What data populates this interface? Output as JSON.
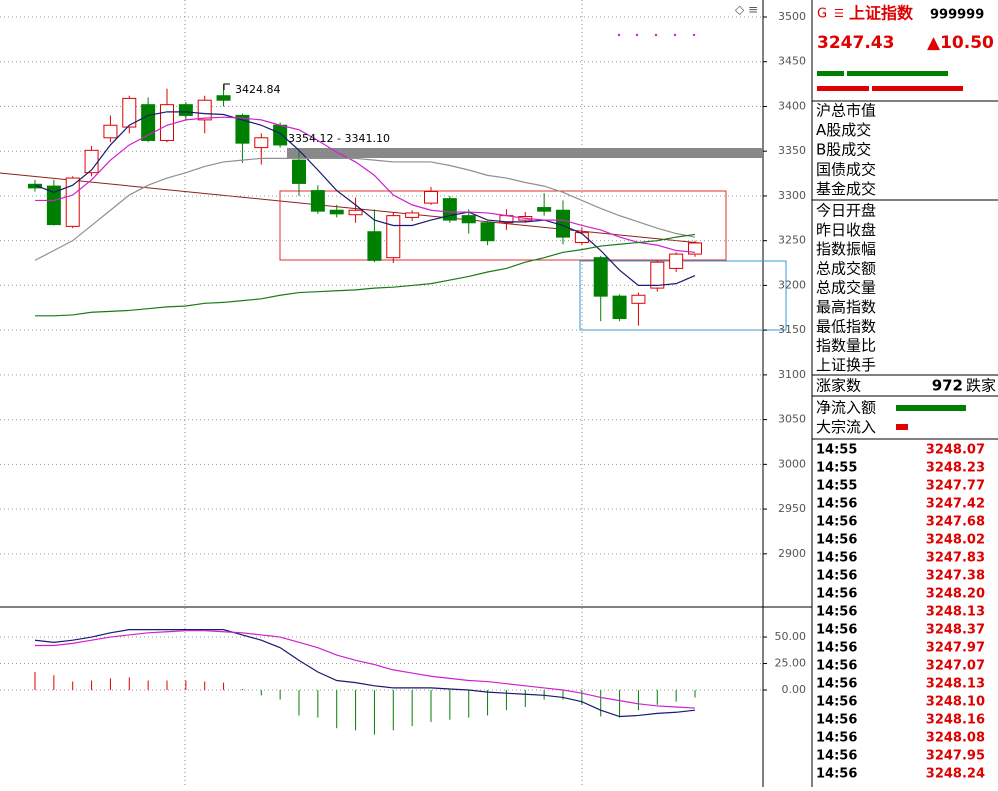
{
  "chart_data": [
    {
      "type": "candlestick",
      "categories": [
        null,
        null,
        null,
        null,
        null,
        null,
        null,
        null,
        null,
        null,
        null,
        null,
        null,
        null,
        null,
        null,
        null,
        null,
        null,
        null,
        null,
        null,
        null,
        null,
        null,
        null,
        null,
        null,
        null,
        null,
        null,
        null,
        null,
        null,
        null,
        null
      ],
      "open": [
        3313,
        3311,
        3266,
        3326,
        3365,
        3377,
        3402,
        3362,
        3402,
        3385,
        3412,
        3390,
        3354,
        3379,
        3340,
        3306,
        3284,
        3279,
        3260,
        3231,
        3276,
        3292,
        3297,
        3278,
        3270,
        3270,
        3273,
        3287,
        3284,
        3248,
        3231,
        3188,
        3180,
        3197,
        3219,
        3235
      ],
      "high": [
        3318,
        3318,
        3322,
        3356,
        3390,
        3412,
        3410,
        3420,
        3405,
        3412,
        3424.84,
        3392,
        3370,
        3382,
        3350,
        3312,
        3290,
        3298,
        3285,
        3282,
        3284,
        3310,
        3300,
        3285,
        3272,
        3285,
        3282,
        3303,
        3295,
        3265,
        3233,
        3190,
        3192,
        3228,
        3237,
        3250
      ],
      "low": [
        3305,
        3267,
        3264,
        3322,
        3360,
        3370,
        3360,
        3360,
        3385,
        3370,
        3400,
        3337,
        3335,
        3354,
        3300,
        3280,
        3276,
        3270,
        3226,
        3225,
        3272,
        3290,
        3270,
        3258,
        3245,
        3262,
        3270,
        3278,
        3246,
        3245,
        3160,
        3160,
        3155,
        3193,
        3215,
        3232
      ],
      "close": [
        3309,
        3268,
        3320,
        3351,
        3379,
        3409,
        3362,
        3402,
        3390,
        3407,
        3407,
        3359,
        3365,
        3357,
        3314,
        3283,
        3280,
        3284,
        3228,
        3278,
        3281,
        3305,
        3273,
        3270,
        3250,
        3278,
        3277,
        3283,
        3254,
        3259,
        3188,
        3163,
        3189,
        3226,
        3235,
        3247.43
      ],
      "up_color": "#e00000",
      "down_color": "#008000",
      "lines": [
        {
          "color": "#1a1a6e",
          "values": [
            3312,
            3304,
            3312,
            3329,
            3357,
            3379,
            3390,
            3394,
            3394,
            3392,
            3391,
            3385,
            3379,
            3370,
            3351,
            3329,
            3306,
            3290,
            3273,
            3267,
            3267,
            3273,
            3278,
            3282,
            3273,
            3271,
            3271,
            3273,
            3267,
            3258,
            3239,
            3217,
            3200,
            3200,
            3202,
            3211
          ]
        },
        {
          "color": "#d020d0",
          "values": [
            3295,
            3295,
            3301,
            3318,
            3340,
            3357,
            3368,
            3379,
            3385,
            3387,
            3388,
            3387,
            3385,
            3379,
            3374,
            3362,
            3349,
            3338,
            3323,
            3301,
            3290,
            3284,
            3282,
            3282,
            3281,
            3278,
            3275,
            3273,
            3273,
            3267,
            3262,
            3254,
            3248,
            3245,
            3239,
            3237
          ]
        },
        {
          "color": "#909090",
          "values": [
            3228,
            3239,
            3250,
            3267,
            3284,
            3301,
            3312,
            3320,
            3326,
            3333,
            3338,
            3340,
            3342,
            3342,
            3342,
            3342,
            3342,
            3342,
            3340,
            3338,
            3338,
            3338,
            3334,
            3329,
            3323,
            3320,
            3315,
            3311,
            3304,
            3295,
            3286,
            3278,
            3271,
            3264,
            3258,
            3254
          ]
        },
        {
          "color": "#1a7a1a",
          "values": [
            3166,
            3166,
            3167,
            3170,
            3171,
            3172,
            3174,
            3176,
            3177,
            3180,
            3181,
            3183,
            3185,
            3189,
            3192,
            3193,
            3194,
            3195,
            3197,
            3198,
            3200,
            3202,
            3206,
            3210,
            3215,
            3219,
            3226,
            3231,
            3237,
            3240,
            3244,
            3246,
            3248,
            3250,
            3254,
            3257
          ]
        }
      ],
      "annotations": [
        "3424.84",
        "3354.12 - 3341.10"
      ],
      "ylim": [
        2842.8,
        3519
      ],
      "yticks": [
        2900,
        2950,
        3000,
        3050,
        3100,
        3150,
        3200,
        3250,
        3300,
        3350,
        3400,
        3450,
        3500
      ],
      "grid": true
    },
    {
      "type": "macd",
      "categories": [
        null,
        null,
        null,
        null,
        null,
        null,
        null,
        null,
        null,
        null,
        null,
        null,
        null,
        null,
        null,
        null,
        null,
        null,
        null,
        null,
        null,
        null,
        null,
        null,
        null,
        null,
        null,
        null,
        null,
        null,
        null,
        null,
        null,
        null,
        null,
        null
      ],
      "histogram": [
        17,
        14,
        8,
        9,
        11,
        12,
        9,
        9,
        9,
        8,
        7,
        1,
        -5,
        -9,
        -24,
        -26,
        -36,
        -38,
        -42,
        -38,
        -34,
        -30,
        -28,
        -26,
        -24,
        -19,
        -16,
        -9,
        -9,
        -14,
        -25,
        -26,
        -19,
        -14,
        -11,
        -7
      ],
      "up_color": "#e00000",
      "down_color": "#008000",
      "lines": [
        {
          "color": "#1a1a6e",
          "values": [
            47,
            45,
            47,
            50,
            54,
            57,
            57,
            57,
            57,
            57,
            57,
            52,
            47,
            40,
            28,
            17,
            9,
            7,
            4,
            2,
            2,
            2,
            1,
            0,
            -2,
            -3,
            -4,
            -5,
            -7,
            -11,
            -19,
            -25,
            -24,
            -22,
            -21,
            -19
          ]
        },
        {
          "color": "#d020d0",
          "values": [
            42,
            42,
            44,
            47,
            50,
            52,
            54,
            55,
            56,
            56,
            55,
            54,
            52,
            50,
            45,
            40,
            33,
            28,
            24,
            19,
            16,
            13,
            11,
            9,
            8,
            6,
            4,
            2,
            0,
            -3,
            -7,
            -10,
            -13,
            -15,
            -16,
            -17
          ]
        }
      ],
      "ylim": [
        -91.5,
        77.4
      ],
      "yticks": [
        {
          "value": 0,
          "label": "0.00"
        },
        {
          "value": 25,
          "label": "25.00"
        },
        {
          "value": 50,
          "label": "50.00"
        }
      ],
      "grid": true
    }
  ],
  "quote": {
    "prefix": "G",
    "name": "上证指数",
    "code": "999999",
    "price": "3247.43",
    "change": "▲10.50",
    "group1": [
      "沪总市值",
      "A股成交",
      "B股成交",
      "国债成交",
      "基金成交"
    ],
    "group2": [
      "今日开盘",
      "昨日收盘",
      "指数振幅",
      "总成交额",
      "总成交量",
      "最高指数",
      "最低指数",
      "指数量比",
      "上证换手"
    ],
    "rise_label": "涨家数",
    "fall_count": "972",
    "fall_label": "跌家",
    "flows": [
      "净流入额",
      "大宗流入"
    ],
    "ticks": [
      [
        "14:55",
        "3248.07"
      ],
      [
        "14:55",
        "3248.23"
      ],
      [
        "14:55",
        "3247.77"
      ],
      [
        "14:56",
        "3247.42"
      ],
      [
        "14:56",
        "3247.68"
      ],
      [
        "14:56",
        "3248.02"
      ],
      [
        "14:56",
        "3247.83"
      ],
      [
        "14:56",
        "3247.38"
      ],
      [
        "14:56",
        "3248.20"
      ],
      [
        "14:56",
        "3248.13"
      ],
      [
        "14:56",
        "3248.37"
      ],
      [
        "14:56",
        "3247.97"
      ],
      [
        "14:56",
        "3247.07"
      ],
      [
        "14:56",
        "3248.13"
      ],
      [
        "14:56",
        "3248.10"
      ],
      [
        "14:56",
        "3248.16"
      ],
      [
        "14:56",
        "3248.08"
      ],
      [
        "14:56",
        "3247.95"
      ],
      [
        "14:56",
        "3248.24"
      ]
    ]
  }
}
